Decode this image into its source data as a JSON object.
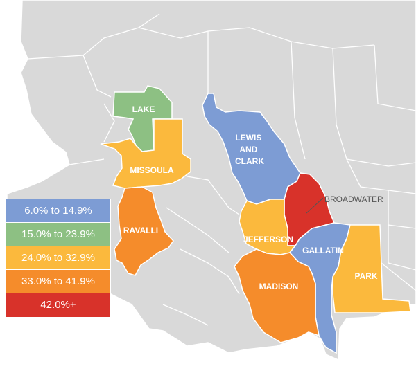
{
  "colors": {
    "land": "#d9d9d9",
    "border": "#ffffff",
    "range1": "#7d9cd4",
    "range2": "#8dc083",
    "range3": "#fbb93d",
    "range4": "#f58c2b",
    "range5": "#d8322a"
  },
  "legend": {
    "items": [
      {
        "label": "6.0% to 14.9%",
        "color": "#7d9cd4"
      },
      {
        "label": "15.0% to 23.9%",
        "color": "#8dc083"
      },
      {
        "label": "24.0% to 32.9%",
        "color": "#fbb93d"
      },
      {
        "label": "33.0% to 41.9%",
        "color": "#f58c2b"
      },
      {
        "label": "42.0%+",
        "color": "#d8322a"
      }
    ]
  },
  "counties": {
    "lake": {
      "label": "LAKE",
      "range": "15.0% to 23.9%"
    },
    "missoula": {
      "label": "MISSOULA",
      "range": "24.0% to 32.9%"
    },
    "ravalli": {
      "label": "RAVALLI",
      "range": "33.0% to 41.9%"
    },
    "lewis_and_clark": {
      "label_lines": [
        "LEWIS",
        "AND",
        "CLARK"
      ],
      "range": "6.0% to 14.9%"
    },
    "broadwater": {
      "label": "BROADWATER",
      "range": "42.0%+"
    },
    "jefferson": {
      "label": "JEFFERSON",
      "range": "24.0% to 32.9%"
    },
    "gallatin": {
      "label": "GALLATIN",
      "range": "6.0% to 14.9%"
    },
    "madison": {
      "label": "MADISON",
      "range": "33.0% to 41.9%"
    },
    "park": {
      "label": "PARK",
      "range": "24.0% to 32.9%"
    }
  }
}
